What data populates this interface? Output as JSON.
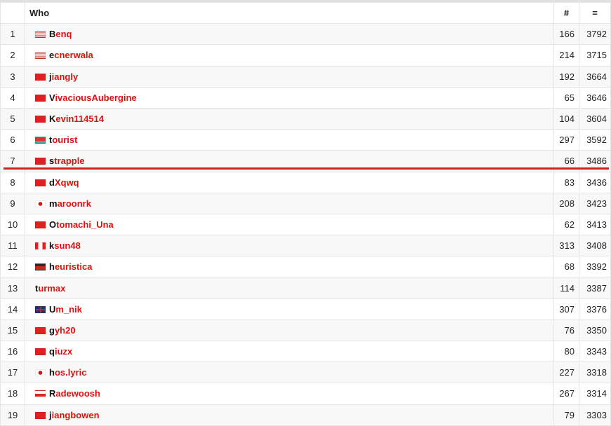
{
  "header": {
    "rank": "",
    "who": "Who",
    "count": "#",
    "rating": "="
  },
  "colors": {
    "handle_red": "#e01010",
    "cutline": "#d02020"
  },
  "rows": [
    {
      "rank": "1",
      "flag": "us",
      "handle": "Benq",
      "count": "166",
      "rating": "3792"
    },
    {
      "rank": "2",
      "flag": "us",
      "handle": "ecnerwala",
      "count": "214",
      "rating": "3715"
    },
    {
      "rank": "3",
      "flag": "cn",
      "handle": "jiangly",
      "count": "192",
      "rating": "3664"
    },
    {
      "rank": "4",
      "flag": "cn",
      "handle": "VivaciousAubergine",
      "count": "65",
      "rating": "3646"
    },
    {
      "rank": "5",
      "flag": "cn",
      "handle": "Kevin114514",
      "count": "104",
      "rating": "3604"
    },
    {
      "rank": "6",
      "flag": "by",
      "handle": "tourist",
      "count": "297",
      "rating": "3592"
    },
    {
      "rank": "7",
      "flag": "cn",
      "handle": "strapple",
      "count": "66",
      "rating": "3486"
    },
    {
      "rank": "8",
      "flag": "cn",
      "handle": "dXqwq",
      "count": "83",
      "rating": "3436"
    },
    {
      "rank": "9",
      "flag": "jp",
      "handle": "maroonrk",
      "count": "208",
      "rating": "3423"
    },
    {
      "rank": "10",
      "flag": "cn",
      "handle": "Otomachi_Una",
      "count": "62",
      "rating": "3413"
    },
    {
      "rank": "11",
      "flag": "ca",
      "handle": "ksun48",
      "count": "313",
      "rating": "3408"
    },
    {
      "rank": "12",
      "flag": "ag",
      "handle": "heuristica",
      "count": "68",
      "rating": "3392"
    },
    {
      "rank": "13",
      "flag": "",
      "handle": "turmax",
      "count": "114",
      "rating": "3387"
    },
    {
      "rank": "14",
      "flag": "gb",
      "handle": "Um_nik",
      "count": "307",
      "rating": "3376"
    },
    {
      "rank": "15",
      "flag": "cn",
      "handle": "gyh20",
      "count": "76",
      "rating": "3350"
    },
    {
      "rank": "16",
      "flag": "cn",
      "handle": "qiuzx",
      "count": "80",
      "rating": "3343"
    },
    {
      "rank": "17",
      "flag": "jp",
      "handle": "hos.lyric",
      "count": "227",
      "rating": "3318"
    },
    {
      "rank": "18",
      "flag": "pl",
      "handle": "Radewoosh",
      "count": "267",
      "rating": "3314"
    },
    {
      "rank": "19",
      "flag": "cn",
      "handle": "jiangbowen",
      "count": "79",
      "rating": "3303"
    }
  ]
}
